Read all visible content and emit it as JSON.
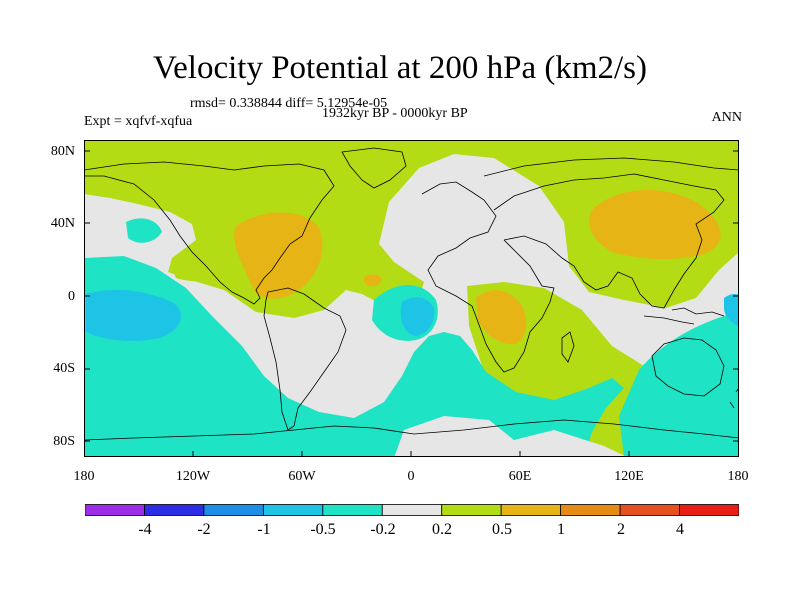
{
  "title": "Velocity Potential at 200 hPa (km2/s)",
  "stats_line": "rmsd= 0.338844  diff= 5.12954e-05",
  "expt_label": "Expt = xqfvf-xqfua",
  "period_label": "1932kyr BP - 0000kyr BP",
  "season_label": "ANN",
  "lat_ticks": [
    "80N",
    "40N",
    "0",
    "40S",
    "80S"
  ],
  "lon_ticks": [
    "180",
    "120W",
    "60W",
    "0",
    "60E",
    "120E",
    "180"
  ],
  "colorbar": {
    "labels": [
      "-4",
      "-2",
      "-1",
      "-0.5",
      "-0.2",
      "0.2",
      "0.5",
      "1",
      "2",
      "4"
    ],
    "colors": [
      "#9b2ee6",
      "#2d2de6",
      "#1e8ee6",
      "#1ec4e6",
      "#1ee3c4",
      "#e6e6e6",
      "#b4dc14",
      "#e6b414",
      "#e68c14",
      "#e6501e",
      "#e61e14"
    ]
  },
  "map_colors": {
    "background": "#e6e6e6",
    "level_pos_0_2": "#b4dc14",
    "level_pos_0_5": "#e6b414",
    "level_neg_0_2": "#1ee3c4",
    "level_neg_0_5": "#1ec4e6",
    "coast": "#000000"
  }
}
